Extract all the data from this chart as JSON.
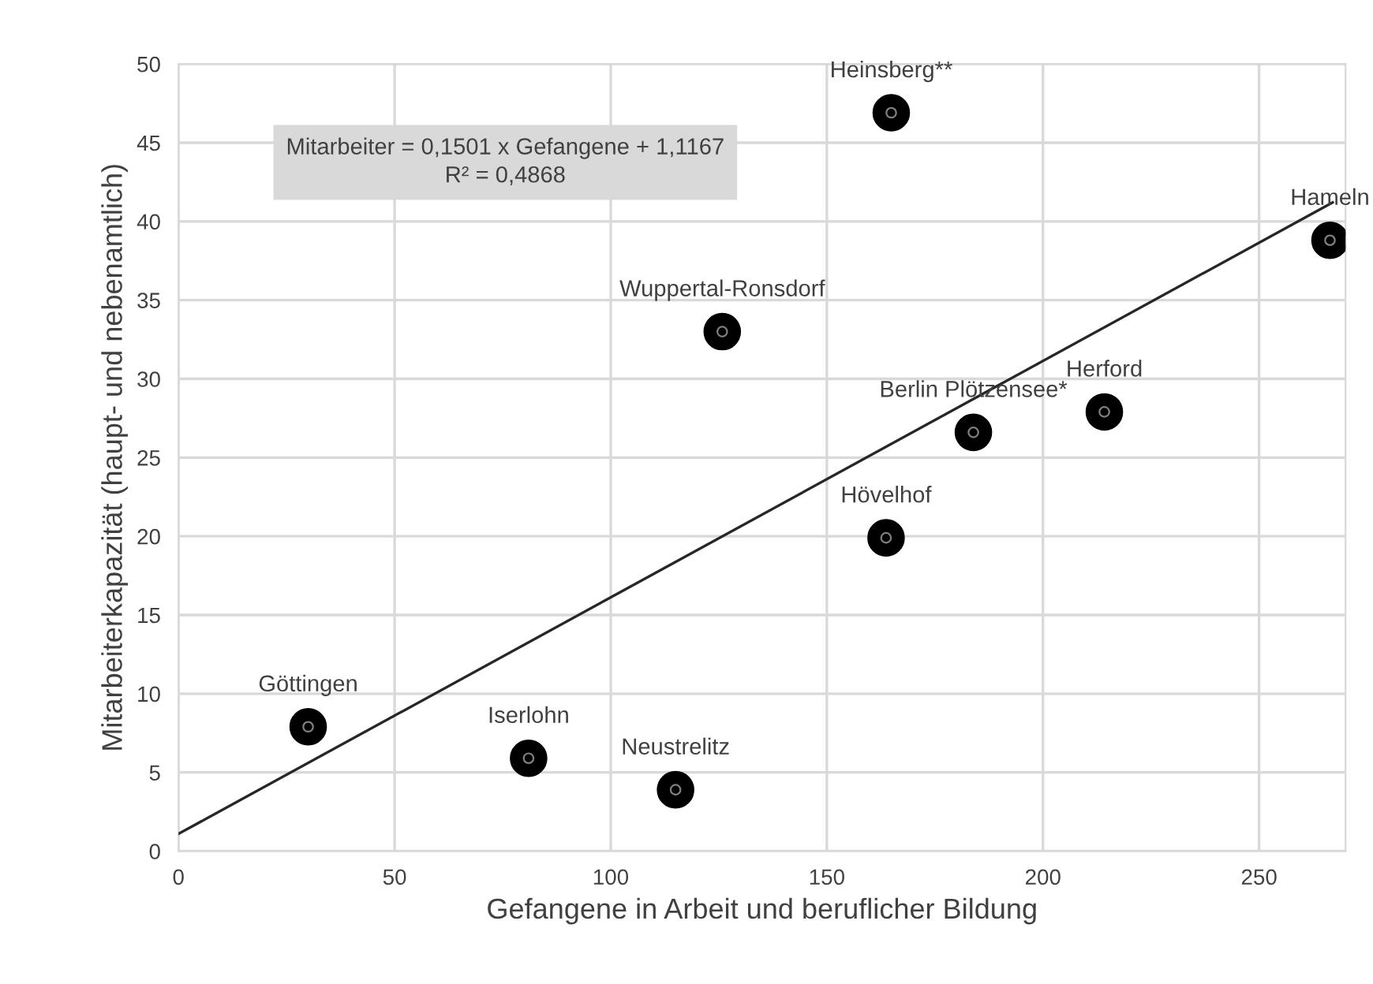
{
  "chart_data": {
    "type": "scatter",
    "xlabel": "Gefangene in Arbeit und beruflicher Bildung",
    "ylabel": "Mitarbeiterkapazität (haupt- und nebenamtlich)",
    "series": [
      {
        "color": "#000000",
        "marker": "circle",
        "x": [
          30,
          81,
          115,
          125.8,
          163.7,
          164.9,
          183.9,
          214.2,
          266.4
        ],
        "values": [
          7.9,
          5.9,
          3.9,
          33.0,
          19.9,
          46.9,
          26.6,
          27.9,
          38.8
        ]
      },
      {
        "type": "line",
        "color": "#262626",
        "marker": "none",
        "line_style": "solid",
        "x": [
          0,
          267
        ],
        "values": [
          1.1,
          41.2
        ]
      }
    ],
    "annotations": [
      "Mitarbeiter = 0,1501 x Gefangene + 1,1167\nR² = 0,4868",
      {
        "text": "Göttingen",
        "x": 30,
        "y": 7.9
      },
      {
        "text": "Iserlohn",
        "x": 81,
        "y": 5.9
      },
      {
        "text": "Neustrelitz",
        "x": 115,
        "y": 3.9
      },
      {
        "text": "Wuppertal-Ronsdorf",
        "x": 125.8,
        "y": 33.0
      },
      {
        "text": "Hövelhof",
        "x": 163.7,
        "y": 19.9
      },
      {
        "text": "Heinsberg**",
        "x": 164.9,
        "y": 46.9
      },
      {
        "text": "Berlin Plötzensee*",
        "x": 183.9,
        "y": 26.6
      },
      {
        "text": "Herford",
        "x": 214.2,
        "y": 27.9
      },
      {
        "text": "Hameln",
        "x": 266.4,
        "y": 38.8
      }
    ],
    "xlim": [
      0,
      270
    ],
    "xticks": [
      0,
      50,
      100,
      150,
      200,
      250
    ],
    "ylim": [
      0,
      50
    ],
    "yticks": [
      0,
      5,
      10,
      15,
      20,
      25,
      30,
      35,
      40,
      45,
      50
    ],
    "grid": true,
    "legend": false
  }
}
